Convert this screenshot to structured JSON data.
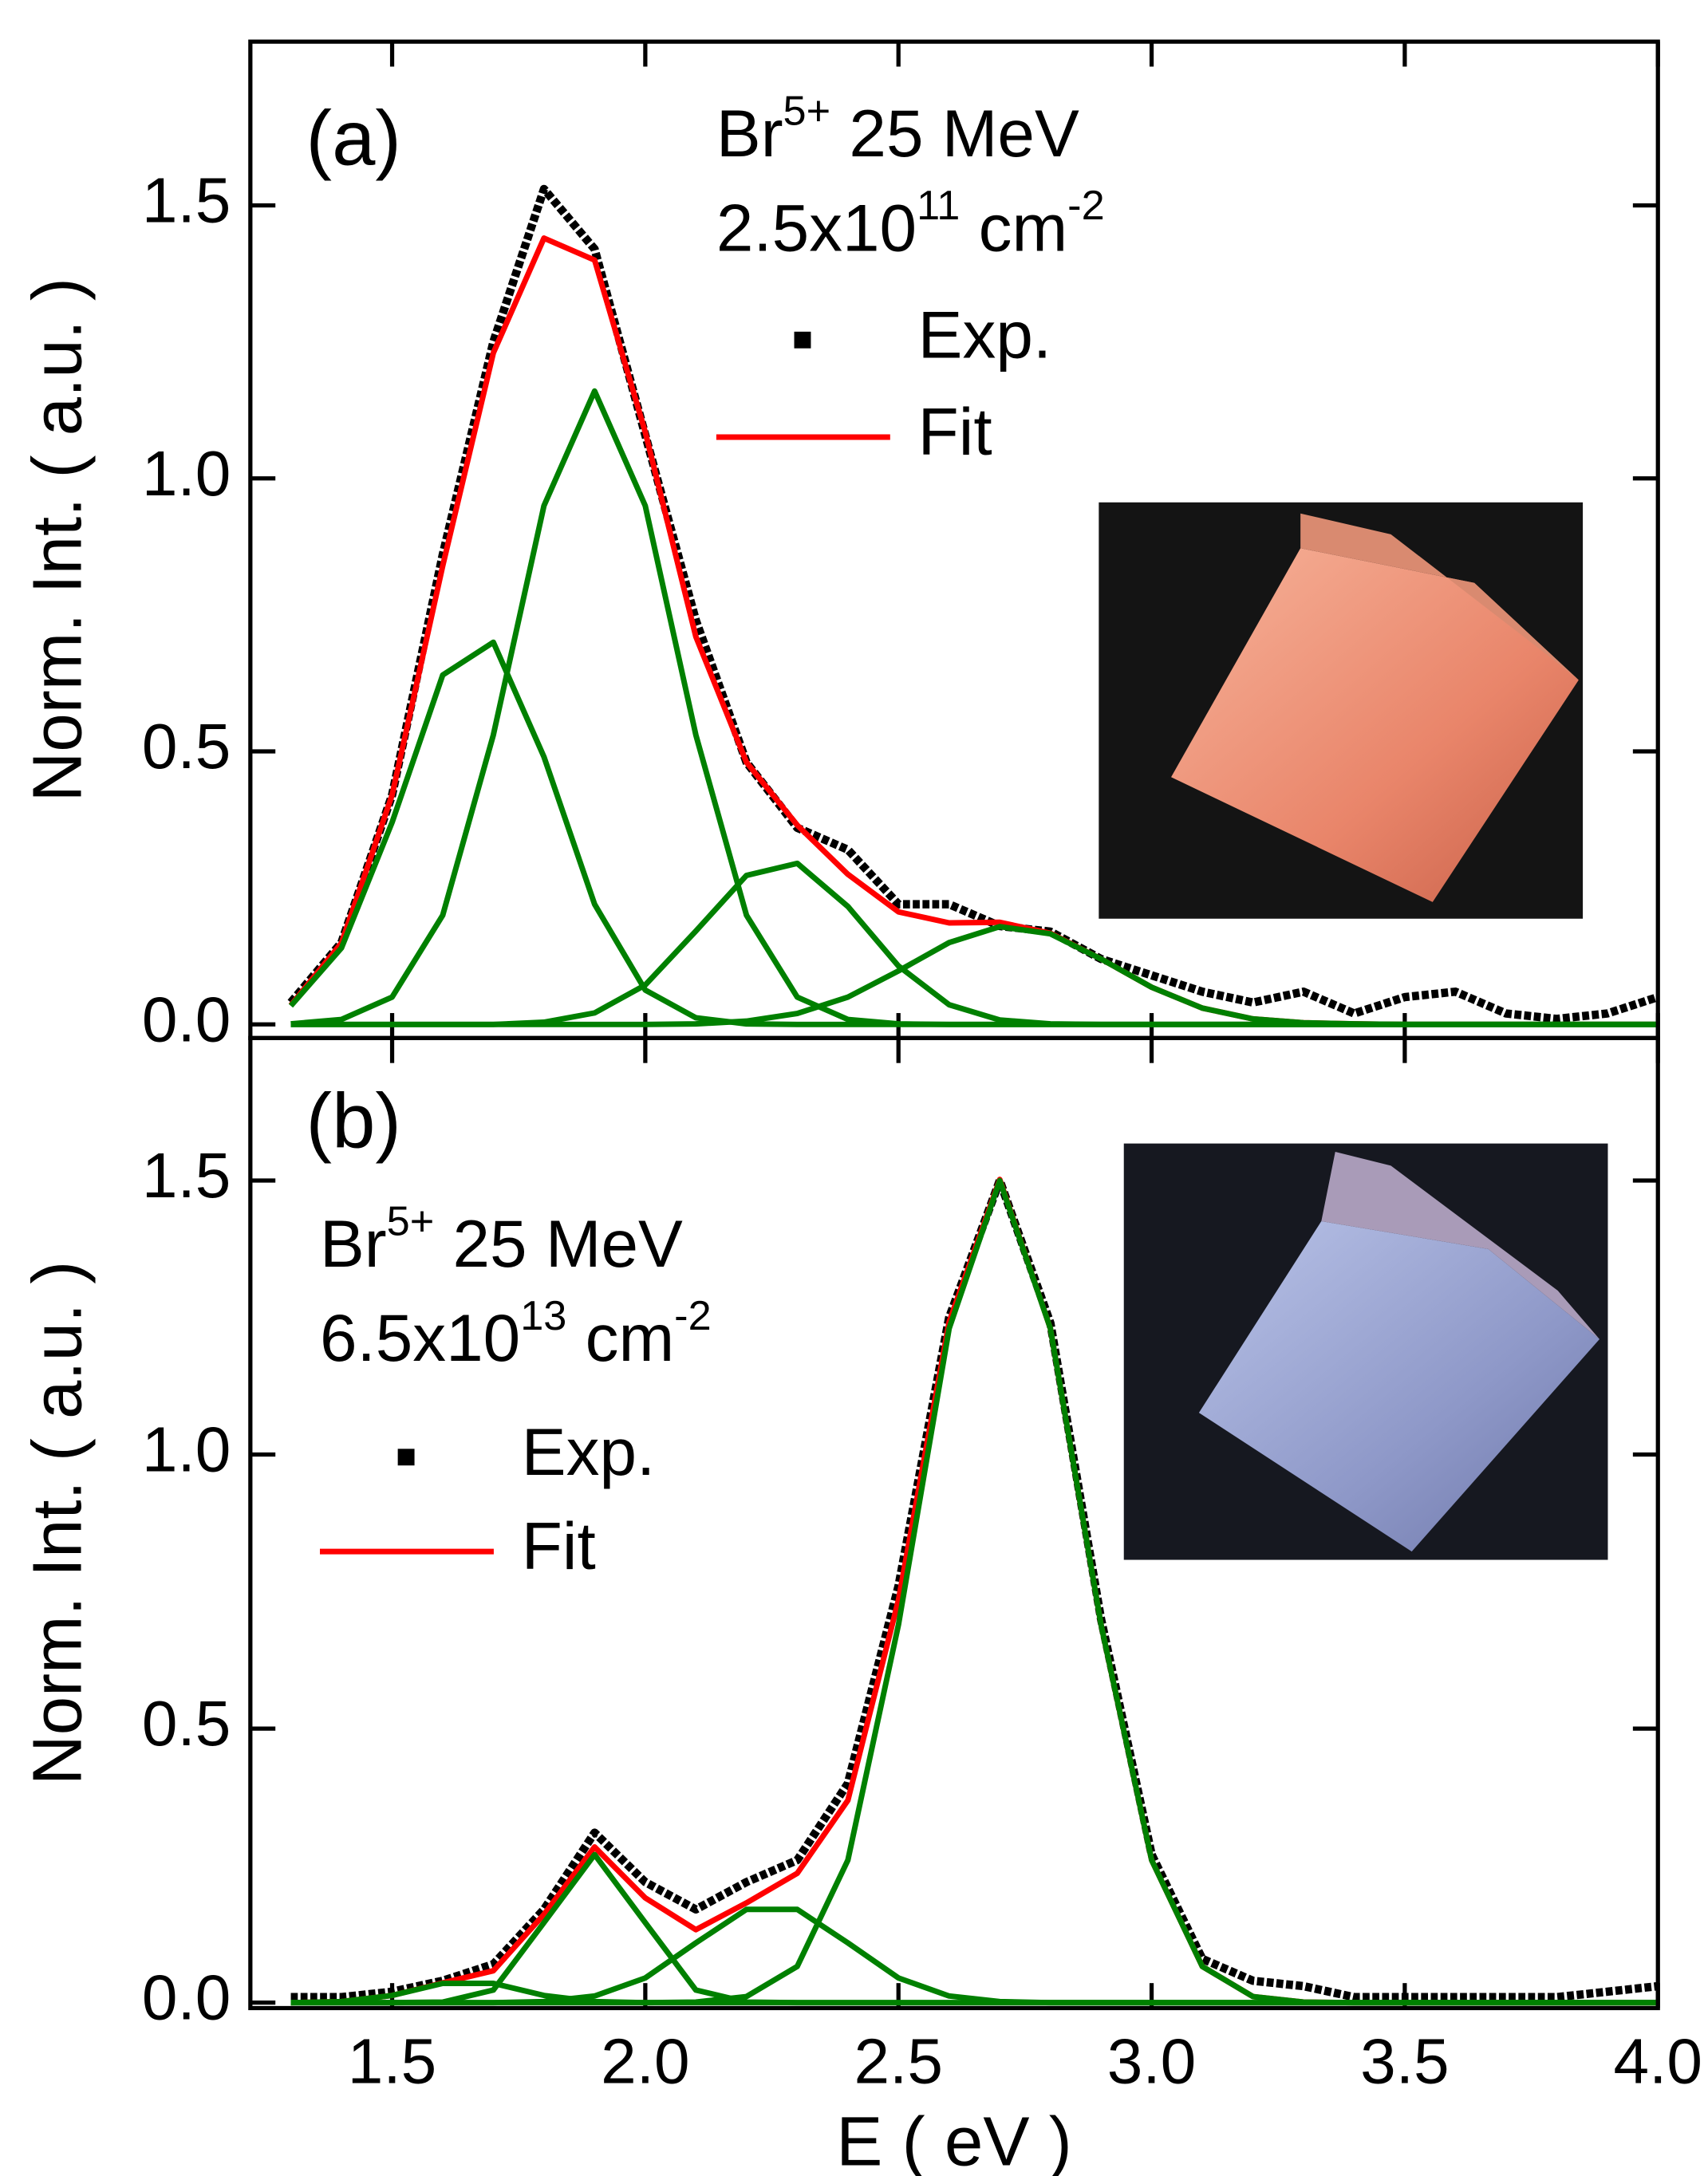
{
  "chart_data": [
    {
      "type": "line",
      "panel_label": "(a)",
      "y_label": "Norm. Int. ( a.u. )",
      "annotations": [
        [
          "Br",
          "5+",
          " 25 MeV"
        ],
        [
          "2.5x10",
          "11",
          " cm",
          "-2"
        ]
      ],
      "x": [
        1.3,
        1.4,
        1.5,
        1.6,
        1.7,
        1.8,
        1.9,
        2.0,
        2.1,
        2.2,
        2.3,
        2.4,
        2.5,
        2.6,
        2.7,
        2.8,
        2.9,
        3.0,
        3.1,
        3.2,
        3.3,
        3.4,
        3.5,
        3.6,
        3.7,
        3.8,
        3.9,
        4.0
      ],
      "series": [
        {
          "name": "Exp.",
          "color": "#000000",
          "marker": "square",
          "values": [
            0.04,
            0.15,
            0.42,
            0.86,
            1.25,
            1.53,
            1.42,
            1.08,
            0.74,
            0.48,
            0.36,
            0.32,
            0.22,
            0.22,
            0.18,
            0.17,
            0.12,
            0.09,
            0.06,
            0.04,
            0.06,
            0.02,
            0.05,
            0.06,
            0.02,
            0.01,
            0.02,
            0.05
          ]
        },
        {
          "name": "Fit",
          "color": "#ff0000",
          "values": [
            0.035,
            0.149,
            0.42,
            0.84,
            1.23,
            1.44,
            1.4,
            1.085,
            0.71,
            0.48,
            0.365,
            0.275,
            0.206,
            0.186,
            0.187,
            0.167,
            0.12,
            0.068,
            0.03,
            0.01,
            0.003,
            0.001,
            0,
            0,
            0,
            0,
            0,
            0
          ]
        },
        {
          "color": "#008000",
          "values": [
            0.034,
            0.14,
            0.37,
            0.64,
            0.7,
            0.49,
            0.22,
            0.063,
            0.012,
            0.001,
            0,
            0,
            0,
            0,
            0,
            0,
            0,
            0,
            0,
            0,
            0,
            0,
            0,
            0,
            0,
            0,
            0,
            0
          ]
        },
        {
          "color": "#008000",
          "values": [
            0.001,
            0.009,
            0.05,
            0.2,
            0.53,
            0.95,
            1.16,
            0.95,
            0.53,
            0.2,
            0.05,
            0.009,
            0.001,
            0,
            0,
            0,
            0,
            0,
            0,
            0,
            0,
            0,
            0,
            0,
            0,
            0,
            0,
            0
          ]
        },
        {
          "color": "#008000",
          "values": [
            0,
            0,
            0,
            0,
            0,
            0.004,
            0.021,
            0.072,
            0.171,
            0.273,
            0.295,
            0.216,
            0.107,
            0.036,
            0.008,
            0.001,
            0,
            0,
            0,
            0,
            0,
            0,
            0,
            0,
            0,
            0,
            0,
            0
          ]
        },
        {
          "color": "#008000",
          "values": [
            0,
            0,
            0,
            0,
            0,
            0,
            0,
            0,
            0.001,
            0.006,
            0.02,
            0.05,
            0.098,
            0.15,
            0.179,
            0.166,
            0.12,
            0.068,
            0.03,
            0.01,
            0.003,
            0.001,
            0,
            0,
            0,
            0,
            0,
            0
          ]
        }
      ],
      "xlim": [
        1.22,
        4.0
      ],
      "ylim": [
        -0.025,
        1.8
      ],
      "yticks": [
        {
          "value": 0,
          "label": "0.0"
        },
        0.5,
        {
          "value": 1,
          "label": "1.0"
        },
        1.5
      ],
      "xticks": [
        1.5,
        {
          "value": 2,
          "label": "2.0"
        },
        2.5,
        {
          "value": 3,
          "label": "3.0"
        },
        3.5,
        {
          "value": 4,
          "label": "4.0"
        }
      ]
    },
    {
      "type": "line",
      "panel_label": "(b)",
      "y_label": "Norm. Int. ( a.u. )",
      "x_label": "E ( eV )",
      "annotations": [
        [
          "Br",
          "5+",
          " 25 MeV"
        ],
        [
          "6.5x10",
          "13",
          " cm",
          "-2"
        ]
      ],
      "x": [
        1.3,
        1.4,
        1.5,
        1.6,
        1.7,
        1.8,
        1.9,
        2.0,
        2.1,
        2.2,
        2.3,
        2.4,
        2.5,
        2.6,
        2.7,
        2.8,
        2.9,
        3.0,
        3.1,
        3.2,
        3.3,
        3.4,
        3.5,
        3.6,
        3.7,
        3.8,
        3.9,
        4.0
      ],
      "series": [
        {
          "name": "Exp.",
          "color": "#000000",
          "marker": "square",
          "values": [
            0.01,
            0.01,
            0.02,
            0.04,
            0.07,
            0.17,
            0.31,
            0.22,
            0.17,
            0.22,
            0.26,
            0.4,
            0.76,
            1.25,
            1.5,
            1.24,
            0.7,
            0.27,
            0.08,
            0.04,
            0.03,
            0.01,
            0.01,
            0.01,
            0.01,
            0.01,
            0.02,
            0.03
          ]
        },
        {
          "name": "Fit",
          "color": "#ff0000",
          "values": [
            0,
            0.002,
            0.013,
            0.036,
            0.058,
            0.161,
            0.284,
            0.191,
            0.133,
            0.182,
            0.236,
            0.369,
            0.735,
            1.242,
            1.502,
            1.23,
            0.69,
            0.26,
            0.066,
            0.011,
            0.001,
            0,
            0,
            0,
            0,
            0,
            0,
            0
          ]
        },
        {
          "color": "#008000",
          "values": [
            0,
            0.002,
            0.013,
            0.035,
            0.035,
            0.013,
            0.002,
            0,
            0,
            0,
            0,
            0,
            0,
            0,
            0,
            0,
            0,
            0,
            0,
            0,
            0,
            0,
            0,
            0,
            0,
            0,
            0,
            0
          ]
        },
        {
          "color": "#008000",
          "values": [
            0,
            0,
            0,
            0.001,
            0.023,
            0.146,
            0.27,
            0.146,
            0.023,
            0.001,
            0,
            0,
            0,
            0,
            0,
            0,
            0,
            0,
            0,
            0,
            0,
            0,
            0,
            0,
            0,
            0,
            0,
            0
          ]
        },
        {
          "color": "#008000",
          "values": [
            0,
            0,
            0,
            0,
            0,
            0.002,
            0.012,
            0.045,
            0.109,
            0.17,
            0.17,
            0.109,
            0.045,
            0.012,
            0.002,
            0,
            0,
            0,
            0,
            0,
            0,
            0,
            0,
            0,
            0,
            0,
            0,
            0
          ]
        },
        {
          "color": "#008000",
          "values": [
            0,
            0,
            0,
            0,
            0,
            0,
            0,
            0,
            0.001,
            0.011,
            0.066,
            0.26,
            0.69,
            1.23,
            1.5,
            1.23,
            0.69,
            0.26,
            0.066,
            0.011,
            0.001,
            0,
            0,
            0,
            0,
            0,
            0,
            0
          ]
        }
      ],
      "xlim": [
        1.22,
        4.0
      ],
      "ylim": [
        -0.01,
        1.76
      ],
      "yticks": [
        {
          "value": 0,
          "label": "0.0"
        },
        0.5,
        {
          "value": 1,
          "label": "1.0"
        },
        1.5
      ],
      "xticks": [
        1.5,
        {
          "value": 2,
          "label": "2.0"
        },
        2.5,
        {
          "value": 3,
          "label": "3.0"
        },
        3.5,
        {
          "value": 4,
          "label": "4.0"
        }
      ]
    }
  ]
}
